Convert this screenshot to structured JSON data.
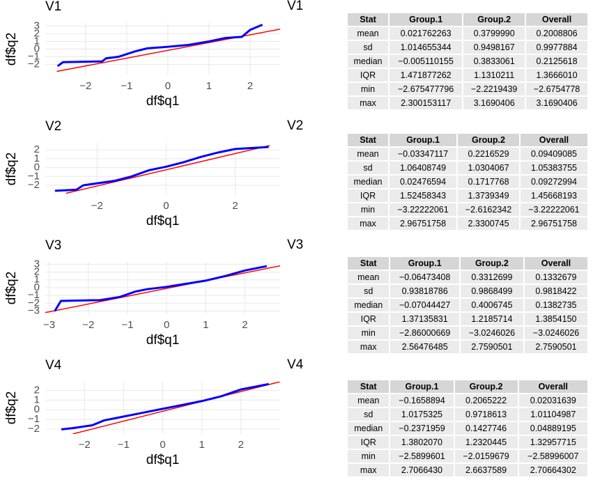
{
  "chart_data": [
    {
      "type": "line",
      "title": "V1",
      "x_label": "df$q1",
      "y_label": "df$q2",
      "grid": true,
      "xlim": [
        -2.98,
        2.73
      ],
      "ylim": [
        -3.4,
        3.4
      ],
      "xticks": [
        {
          "value": -2,
          "label": "−2"
        },
        {
          "value": -1,
          "label": "−1"
        },
        0,
        1,
        2
      ],
      "yticks": [
        {
          "value": -2,
          "label": "−2"
        },
        {
          "value": -1,
          "label": "−1"
        },
        0,
        1,
        2,
        3
      ],
      "series": [
        {
          "color": "#0000ff",
          "x": [
            -2.68,
            -2.55,
            -1.6,
            -1.5,
            -1.2,
            -0.8,
            -0.5,
            0,
            0.5,
            1,
            1.4,
            1.8,
            2.0,
            2.3
          ],
          "values": [
            -2.22,
            -1.7,
            -1.6,
            -1.2,
            -1.0,
            -0.3,
            0.1,
            0.3,
            0.55,
            1.0,
            1.45,
            1.6,
            2.5,
            3.17
          ]
        },
        {
          "color": "#ff0000",
          "x": [
            -2.7,
            2.73
          ],
          "values": [
            -2.9,
            2.6
          ]
        }
      ]
    },
    {
      "type": "line",
      "title": "V2",
      "x_label": "df$q1",
      "y_label": "df$q2",
      "grid": true,
      "xlim": [
        -3.5,
        3.3
      ],
      "ylim": [
        -3.1,
        2.8
      ],
      "xticks": [
        {
          "value": -2,
          "label": "−2"
        },
        0,
        2
      ],
      "yticks": [
        {
          "value": -2,
          "label": "−2"
        },
        {
          "value": -1,
          "label": "−1"
        },
        0,
        1,
        2
      ],
      "series": [
        {
          "color": "#0000ff",
          "x": [
            -3.22,
            -2.6,
            -2.4,
            -1.5,
            -1.0,
            -0.5,
            0,
            0.5,
            1,
            1.5,
            2,
            2.97
          ],
          "values": [
            -2.62,
            -2.5,
            -2.0,
            -1.5,
            -1.0,
            -0.3,
            0.1,
            0.6,
            1.2,
            1.7,
            2.1,
            2.33
          ]
        },
        {
          "color": "#ff0000",
          "x": [
            -2.9,
            3.0
          ],
          "values": [
            -2.9,
            2.5
          ]
        }
      ]
    },
    {
      "type": "line",
      "title": "V3",
      "x_label": "df$q1",
      "y_label": "df$q2",
      "grid": true,
      "xlim": [
        -3.1,
        2.9
      ],
      "ylim": [
        -3.4,
        3.3
      ],
      "xticks": [
        {
          "value": -3,
          "label": "−3"
        },
        {
          "value": -2,
          "label": "−2"
        },
        {
          "value": -1,
          "label": "−1"
        },
        0,
        1,
        2
      ],
      "yticks": [
        {
          "value": -3,
          "label": "−3"
        },
        {
          "value": -2,
          "label": "−2"
        },
        {
          "value": -1,
          "label": "−1"
        },
        0,
        1,
        2,
        3
      ],
      "series": [
        {
          "color": "#0000ff",
          "x": [
            -2.86,
            -2.7,
            -1.7,
            -1.2,
            -0.8,
            -0.5,
            0,
            0.5,
            1,
            1.5,
            2,
            2.56
          ],
          "values": [
            -3.02,
            -1.7,
            -1.6,
            -1.2,
            -0.5,
            -0.2,
            0.1,
            0.5,
            0.9,
            1.5,
            2.2,
            2.76
          ]
        },
        {
          "color": "#ff0000",
          "x": [
            -3.1,
            2.9
          ],
          "values": [
            -3.2,
            2.8
          ]
        }
      ]
    },
    {
      "type": "line",
      "title": "V4",
      "x_label": "df$q1",
      "y_label": "df$q2",
      "grid": true,
      "xlim": [
        -3.0,
        3.0
      ],
      "ylim": [
        -2.5,
        2.9
      ],
      "xticks": [
        {
          "value": -2,
          "label": "−2"
        },
        {
          "value": -1,
          "label": "−1"
        },
        0,
        1,
        2
      ],
      "yticks": [
        {
          "value": -2,
          "label": "−2"
        },
        {
          "value": -1,
          "label": "−1"
        },
        0,
        1,
        2
      ],
      "series": [
        {
          "color": "#0000ff",
          "x": [
            -2.59,
            -2.3,
            -1.8,
            -1.5,
            -1,
            -0.5,
            0,
            0.5,
            1,
            1.5,
            2,
            2.71
          ],
          "values": [
            -2.02,
            -1.9,
            -1.6,
            -1.1,
            -0.7,
            -0.3,
            0.1,
            0.5,
            0.9,
            1.4,
            2.1,
            2.66
          ]
        },
        {
          "color": "#ff0000",
          "x": [
            -2.3,
            3.0
          ],
          "values": [
            -2.5,
            2.9
          ]
        }
      ]
    }
  ],
  "tables": [
    {
      "title": "V1",
      "header": [
        "Stat",
        "Group.1",
        "Group.2",
        "Overall"
      ],
      "rows": [
        [
          "mean",
          "0.021762263",
          "0.3799990",
          "0.2008806"
        ],
        [
          "sd",
          "1.014655344",
          "0.9498167",
          "0.9977884"
        ],
        [
          "median",
          "−0.005110155",
          "0.3833061",
          "0.2125618"
        ],
        [
          "IQR",
          "1.471877262",
          "1.1310211",
          "1.3666010"
        ],
        [
          "min",
          "−2.675477796",
          "−2.2219439",
          "−2.6754778"
        ],
        [
          "max",
          "2.300153117",
          "3.1690406",
          "3.1690406"
        ]
      ]
    },
    {
      "title": "V2",
      "header": [
        "Stat",
        "Group.1",
        "Group.2",
        "Overall"
      ],
      "rows": [
        [
          "mean",
          "−0.03347117",
          "0.2216529",
          "0.09409085"
        ],
        [
          "sd",
          "1.06408749",
          "1.0304067",
          "1.05383755"
        ],
        [
          "median",
          "0.02476594",
          "0.1717768",
          "0.09272994"
        ],
        [
          "IQR",
          "1.52458343",
          "1.3739349",
          "1.45668193"
        ],
        [
          "min",
          "−3.22222061",
          "−2.6162342",
          "−3.22222061"
        ],
        [
          "max",
          "2.96751758",
          "2.3300745",
          "2.96751758"
        ]
      ]
    },
    {
      "title": "V3",
      "header": [
        "Stat",
        "Group.1",
        "Group.2",
        "Overall"
      ],
      "rows": [
        [
          "mean",
          "−0.06473408",
          "0.3312699",
          "0.1332679"
        ],
        [
          "sd",
          "0.93818786",
          "0.9868499",
          "0.9818422"
        ],
        [
          "median",
          "−0.07044427",
          "0.4006745",
          "0.1382735"
        ],
        [
          "IQR",
          "1.37135831",
          "1.2185714",
          "1.3854150"
        ],
        [
          "min",
          "−2.86000669",
          "−3.0246026",
          "−3.0246026"
        ],
        [
          "max",
          "2.56476485",
          "2.7590501",
          "2.7590501"
        ]
      ]
    },
    {
      "title": "V4",
      "header": [
        "Stat",
        "Group.1",
        "Group.2",
        "Overall"
      ],
      "rows": [
        [
          "mean",
          "−0.1658894",
          "0.2065222",
          "0.02031639"
        ],
        [
          "sd",
          "1.0175325",
          "0.9718613",
          "1.01104987"
        ],
        [
          "median",
          "−0.2371959",
          "0.1427746",
          "0.04889195"
        ],
        [
          "IQR",
          "1.3802070",
          "1.2320445",
          "1.32957715"
        ],
        [
          "min",
          "−2.5899601",
          "−2.0159679",
          "−2.58996007"
        ],
        [
          "max",
          "2.7066430",
          "2.6637589",
          "2.70664302"
        ]
      ]
    }
  ]
}
